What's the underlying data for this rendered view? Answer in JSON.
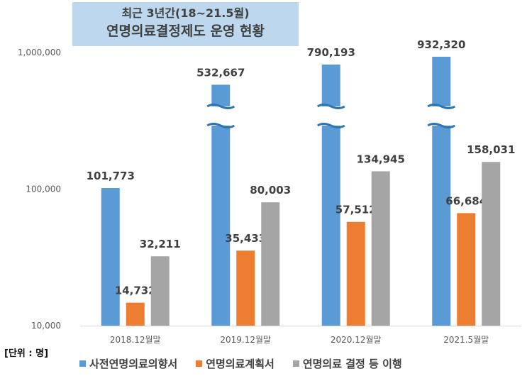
{
  "chart_data": {
    "type": "bar",
    "title_line1": "최근 3년간(18~21.5월)",
    "title_line2": "연명의료결정제도 운영 현황",
    "unit_label": "[단위 : 명]",
    "y_scale": "log",
    "ylim": [
      10000,
      1000000
    ],
    "y_ticks": [
      {
        "value": 10000,
        "label": "10,000"
      },
      {
        "value": 100000,
        "label": "100,000"
      },
      {
        "value": 1000000,
        "label": "1,000,000"
      }
    ],
    "axis_break": true,
    "grid": false,
    "legend_position": "bottom",
    "categories": [
      "2018.12월말",
      "2019.12월말",
      "2020.12월말",
      "2021.5월말"
    ],
    "series": [
      {
        "name": "사전연명의료의향서",
        "color": "#5b9bd5",
        "values": [
          101773,
          532667,
          790193,
          932320
        ],
        "labels": [
          "101,773",
          "532,667",
          "790,193",
          "932,320"
        ]
      },
      {
        "name": "연명의료계획서",
        "color": "#ed7d31",
        "values": [
          14732,
          35433,
          57512,
          66684
        ],
        "labels": [
          "14,732",
          "35,433",
          "57,512",
          "66,684"
        ]
      },
      {
        "name": "연명의료 결정 등 이행",
        "color": "#a5a5a5",
        "values": [
          32211,
          80003,
          134945,
          158031
        ],
        "labels": [
          "32,211",
          "80,003",
          "134,945",
          "158,031"
        ]
      }
    ]
  }
}
